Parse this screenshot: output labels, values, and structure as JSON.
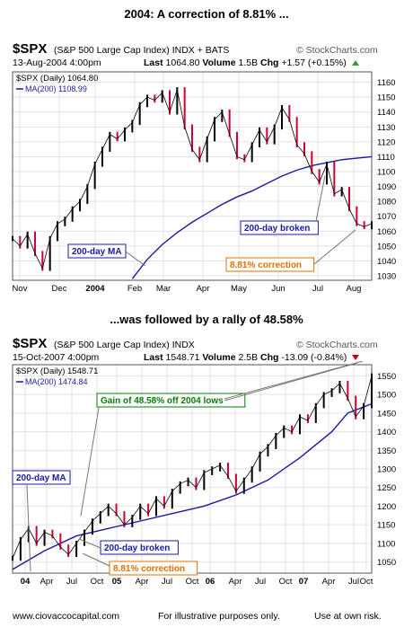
{
  "top_title": "2004:  A correction of  8.81% ...",
  "mid_title": "...was followed by a rally of  48.58%",
  "footer": {
    "left": "www.ciovaccocapital.com",
    "center": "For illustrative purposes only.",
    "right": "Use at own risk."
  },
  "colors": {
    "up": "#000000",
    "down": "#cc0033",
    "ma": "#1a1aa0",
    "blue_label": "#1a1aa0",
    "orange_label": "#e07000",
    "green_label": "#0a7a0a"
  },
  "chart_data": [
    {
      "type": "line",
      "ticker": "$SPX",
      "name": "(S&P 500 Large Cap Index) INDX + BATS",
      "watermark": "© StockCharts.com",
      "date": "13-Aug-2004 4:00pm",
      "last_label": "Last",
      "last": "1064.80",
      "volume_label": "Volume",
      "volume": "1.5B",
      "chg_label": "Chg",
      "chg": "+1.57 (+0.15%)",
      "legend": [
        "$SPX (Daily) 1064.80",
        "MA(200) 1108.99"
      ],
      "ylim": [
        1027,
        1167
      ],
      "yticks": [
        1030,
        1040,
        1050,
        1060,
        1070,
        1080,
        1090,
        1100,
        1110,
        1120,
        1130,
        1140,
        1150,
        1160
      ],
      "xticks": [
        "Nov",
        "Dec",
        "2004",
        "Feb",
        "Mar",
        "Apr",
        "May",
        "Jun",
        "Jul",
        "Aug"
      ],
      "x": [
        0,
        4,
        8,
        12,
        16,
        20,
        24,
        28,
        32,
        36,
        40,
        44,
        48,
        52,
        56,
        60,
        64,
        68,
        72,
        76,
        80,
        84,
        88,
        92,
        96,
        100,
        104,
        108,
        112,
        116,
        120,
        124,
        128,
        132,
        136,
        140,
        144,
        148,
        152,
        156,
        160,
        164,
        168,
        172,
        176,
        180,
        184,
        188,
        192
      ],
      "price": [
        1055,
        1050,
        1058,
        1045,
        1035,
        1055,
        1065,
        1068,
        1075,
        1080,
        1090,
        1105,
        1115,
        1125,
        1122,
        1128,
        1133,
        1145,
        1150,
        1148,
        1153,
        1140,
        1155,
        1130,
        1115,
        1108,
        1122,
        1135,
        1140,
        1125,
        1110,
        1108,
        1118,
        1128,
        1120,
        1130,
        1143,
        1135,
        1118,
        1112,
        1100,
        1093,
        1105,
        1085,
        1088,
        1075,
        1065,
        1063,
        1065
      ],
      "ma_x": [
        64,
        72,
        80,
        88,
        96,
        104,
        112,
        120,
        128,
        136,
        144,
        152,
        160,
        168,
        176,
        184,
        192
      ],
      "ma": [
        1028,
        1041,
        1051,
        1059,
        1066,
        1072,
        1078,
        1083,
        1087,
        1092,
        1097,
        1101,
        1104,
        1106,
        1108,
        1109,
        1110
      ],
      "annotations": [
        "200-day MA",
        "200-day broken",
        "8.81% correction"
      ]
    },
    {
      "type": "line",
      "ticker": "$SPX",
      "name": "(S&P 500 Large Cap Index) INDX",
      "watermark": "© StockCharts.com",
      "date": "15-Oct-2007 4:00pm",
      "last_label": "Last",
      "last": "1548.71",
      "volume_label": "Volume",
      "volume": "2.5B",
      "chg_label": "Chg",
      "chg": "-13.09 (-0.84%)",
      "legend": [
        "$SPX (Daily) 1548.71",
        "MA(200) 1474.84"
      ],
      "ylim": [
        1020,
        1580
      ],
      "yticks": [
        1050,
        1100,
        1150,
        1200,
        1250,
        1300,
        1350,
        1400,
        1450,
        1500,
        1550
      ],
      "xticks": [
        "04",
        "Apr",
        "Jul",
        "Oct",
        "05",
        "Apr",
        "Jul",
        "Oct",
        "06",
        "Apr",
        "Jul",
        "Oct",
        "07",
        "Apr",
        "Jul",
        "Oct"
      ],
      "x": [
        0,
        1,
        2,
        3,
        4,
        5,
        6,
        7,
        8,
        9,
        10,
        11,
        12,
        13,
        14,
        15,
        16,
        17,
        18,
        19,
        20,
        21,
        22,
        23,
        24,
        25,
        26,
        27,
        28,
        29,
        30,
        31,
        32,
        33,
        34,
        35,
        36,
        37,
        38,
        39,
        40,
        41,
        42,
        43,
        44,
        45
      ],
      "price": [
        1060,
        1110,
        1140,
        1100,
        1130,
        1120,
        1090,
        1070,
        1100,
        1130,
        1160,
        1180,
        1200,
        1180,
        1150,
        1170,
        1200,
        1180,
        1220,
        1200,
        1240,
        1260,
        1270,
        1250,
        1290,
        1300,
        1310,
        1280,
        1240,
        1270,
        1300,
        1340,
        1360,
        1390,
        1410,
        1400,
        1440,
        1430,
        1470,
        1500,
        1510,
        1530,
        1490,
        1440,
        1470,
        1550
      ],
      "ma_x": [
        0,
        4,
        8,
        12,
        16,
        20,
        24,
        28,
        32,
        36,
        40,
        42,
        45
      ],
      "ma": [
        1030,
        1080,
        1120,
        1140,
        1160,
        1180,
        1200,
        1230,
        1270,
        1330,
        1400,
        1450,
        1475
      ],
      "annotations": [
        "Gain of 48.58% off 2004 lows",
        "200-day MA",
        "200-day broken",
        "8.81% correction"
      ]
    }
  ]
}
